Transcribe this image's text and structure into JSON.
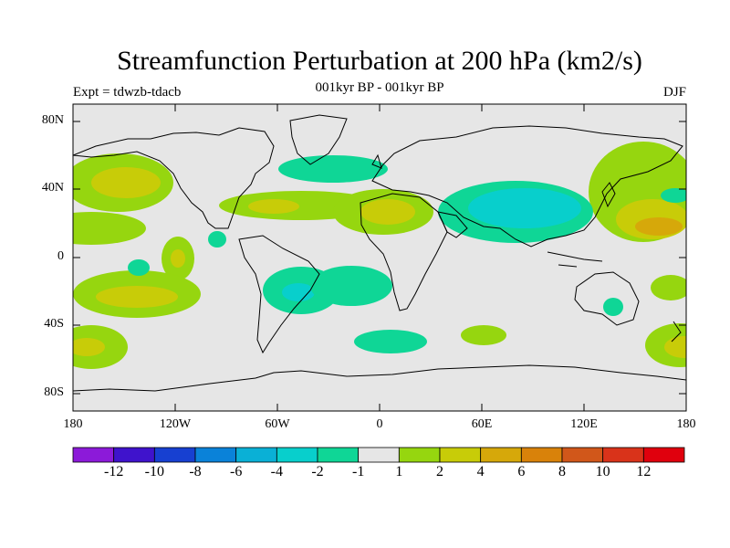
{
  "title": "Streamfunction Perturbation at 200 hPa (km2/s)",
  "subtitle": "001kyr BP - 001kyr BP",
  "left_string": "Expt = tdwzb-tdacb",
  "right_string": "DJF",
  "lat_ticks": [
    "80N",
    "40N",
    "0",
    "40S",
    "80S"
  ],
  "lon_ticks": [
    "180",
    "120W",
    "60W",
    "0",
    "60E",
    "120E",
    "180"
  ],
  "colorbar": {
    "labels": [
      "-12",
      "-10",
      "-8",
      "-6",
      "-4",
      "-2",
      "-1",
      "1",
      "2",
      "4",
      "6",
      "8",
      "10",
      "12"
    ],
    "colors": [
      "#8c1ad9",
      "#3f13cc",
      "#1740d1",
      "#0a82d9",
      "#0ab0d6",
      "#08cfcc",
      "#0fd696",
      "#e6e6e6",
      "#96d60f",
      "#c8cc08",
      "#d6a80a",
      "#d9820a",
      "#d1571a",
      "#d9331a",
      "#e0000d"
    ]
  },
  "map_colors": {
    "background": "#e6e6e6",
    "neg_1": "#0fd696",
    "neg_2": "#08cfcc",
    "pos_1": "#96d60f",
    "pos_2": "#c8cc08",
    "pos_3": "#d6a80a",
    "land": "#000000"
  }
}
